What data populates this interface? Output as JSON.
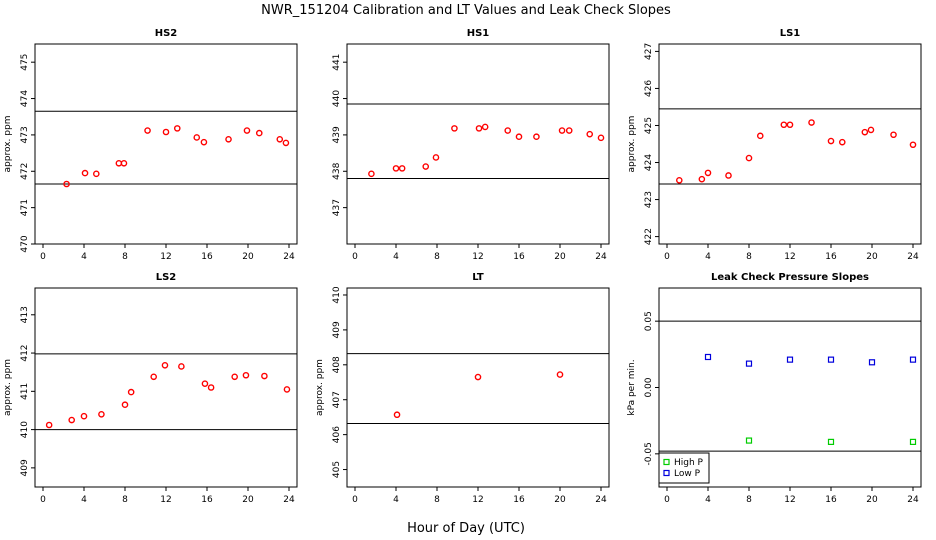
{
  "figure": {
    "title": "NWR_151204  Calibration and LT Values and Leak Check Slopes",
    "xlabel": "Hour of Day (UTC)"
  },
  "chart_data": [
    {
      "id": "hs2",
      "type": "scatter",
      "title": "HS2",
      "ylabel": "approx. ppm",
      "xlim": [
        0,
        24
      ],
      "ylim": [
        470,
        475.5
      ],
      "xticks": [
        "0",
        "4",
        "8",
        "12",
        "16",
        "20",
        "24"
      ],
      "yticks": [
        "470",
        "471",
        "472",
        "473",
        "474",
        "475"
      ],
      "hlines": [
        471.65,
        473.65
      ],
      "series": [
        {
          "name": "HS2",
          "color": "#ff0000",
          "marker": "circle",
          "x": [
            2.3,
            4.1,
            5.2,
            7.4,
            7.9,
            10.2,
            12.0,
            13.1,
            15.0,
            15.7,
            18.1,
            19.9,
            21.1,
            23.1,
            23.7
          ],
          "y": [
            471.65,
            471.95,
            471.93,
            472.22,
            472.22,
            473.12,
            473.08,
            473.18,
            472.93,
            472.8,
            472.88,
            473.12,
            473.05,
            472.88,
            472.78
          ]
        }
      ]
    },
    {
      "id": "hs1",
      "type": "scatter",
      "title": "HS1",
      "ylabel": "",
      "xlim": [
        0,
        24
      ],
      "ylim": [
        436,
        441.5
      ],
      "xticks": [
        "0",
        "4",
        "8",
        "12",
        "16",
        "20",
        "24"
      ],
      "yticks": [
        "437",
        "438",
        "439",
        "440",
        "441"
      ],
      "hlines": [
        437.8,
        439.85
      ],
      "series": [
        {
          "name": "HS1",
          "color": "#ff0000",
          "marker": "circle",
          "x": [
            1.6,
            4.0,
            4.6,
            6.9,
            7.9,
            9.7,
            12.1,
            12.7,
            14.9,
            16.0,
            17.7,
            20.2,
            20.9,
            22.9,
            24.0
          ],
          "y": [
            437.93,
            438.08,
            438.08,
            438.13,
            438.38,
            439.18,
            439.18,
            439.22,
            439.12,
            438.95,
            438.95,
            439.12,
            439.12,
            439.02,
            438.92
          ]
        }
      ]
    },
    {
      "id": "ls1",
      "type": "scatter",
      "title": "LS1",
      "ylabel": "approx. ppm",
      "xlim": [
        0,
        24
      ],
      "ylim": [
        421.8,
        427.2
      ],
      "xticks": [
        "0",
        "4",
        "8",
        "12",
        "16",
        "20",
        "24"
      ],
      "yticks": [
        "422",
        "423",
        "424",
        "425",
        "426",
        "427"
      ],
      "hlines": [
        423.42,
        425.45
      ],
      "series": [
        {
          "name": "LS1",
          "color": "#ff0000",
          "marker": "circle",
          "x": [
            1.2,
            3.4,
            4.0,
            6.0,
            8.0,
            9.1,
            11.4,
            12.0,
            14.1,
            16.0,
            17.1,
            19.3,
            19.9,
            22.1,
            24.0
          ],
          "y": [
            423.52,
            423.55,
            423.72,
            423.65,
            424.12,
            424.72,
            425.02,
            425.02,
            425.08,
            424.58,
            424.55,
            424.82,
            424.88,
            424.75,
            424.48
          ]
        }
      ]
    },
    {
      "id": "ls2",
      "type": "scatter",
      "title": "LS2",
      "ylabel": "approx. ppm",
      "xlim": [
        0,
        24
      ],
      "ylim": [
        408.5,
        413.7
      ],
      "xticks": [
        "0",
        "4",
        "8",
        "12",
        "16",
        "20",
        "24"
      ],
      "yticks": [
        "409",
        "410",
        "411",
        "412",
        "413"
      ],
      "hlines": [
        410.0,
        411.98
      ],
      "series": [
        {
          "name": "LS2",
          "color": "#ff0000",
          "marker": "circle",
          "x": [
            0.6,
            2.8,
            4.0,
            5.7,
            8.0,
            8.6,
            10.8,
            11.9,
            13.5,
            15.8,
            16.4,
            18.7,
            19.8,
            21.6,
            23.8
          ],
          "y": [
            410.12,
            410.25,
            410.35,
            410.4,
            410.65,
            410.98,
            411.38,
            411.68,
            411.65,
            411.2,
            411.1,
            411.38,
            411.42,
            411.4,
            411.05
          ]
        }
      ]
    },
    {
      "id": "lt",
      "type": "scatter",
      "title": "LT",
      "ylabel": "approx. ppm",
      "xlim": [
        0,
        24
      ],
      "ylim": [
        404.5,
        410.2
      ],
      "xticks": [
        "0",
        "4",
        "8",
        "12",
        "16",
        "20",
        "24"
      ],
      "yticks": [
        "405",
        "406",
        "407",
        "408",
        "409",
        "410"
      ],
      "hlines": [
        406.32,
        408.32
      ],
      "series": [
        {
          "name": "LT",
          "color": "#ff0000",
          "marker": "circle",
          "x": [
            4.1,
            12.0,
            20.0
          ],
          "y": [
            406.57,
            407.65,
            407.72
          ]
        }
      ]
    },
    {
      "id": "leak",
      "type": "scatter",
      "title": "Leak Check Pressure Slopes",
      "ylabel": "kPa per min.",
      "xlim": [
        0,
        24
      ],
      "ylim": [
        -0.075,
        0.075
      ],
      "xticks": [
        "0",
        "4",
        "8",
        "12",
        "16",
        "20",
        "24"
      ],
      "yticks": [
        "-0.05",
        "0.00",
        "0.05"
      ],
      "yticks_values": [
        -0.05,
        0.0,
        0.05
      ],
      "hlines": [
        -0.048,
        0.05
      ],
      "legend": {
        "position": "bottom-left",
        "entries": [
          "High P",
          "Low P"
        ]
      },
      "series": [
        {
          "name": "High P",
          "color": "#00cc00",
          "marker": "square",
          "x": [
            8.0,
            16.0,
            24.0
          ],
          "y": [
            -0.04,
            -0.041,
            -0.041
          ]
        },
        {
          "name": "Low P",
          "color": "#0000dd",
          "marker": "square",
          "x": [
            4.0,
            8.0,
            12.0,
            16.0,
            20.0,
            24.0
          ],
          "y": [
            0.023,
            0.018,
            0.021,
            0.021,
            0.019,
            0.021
          ]
        }
      ]
    }
  ]
}
